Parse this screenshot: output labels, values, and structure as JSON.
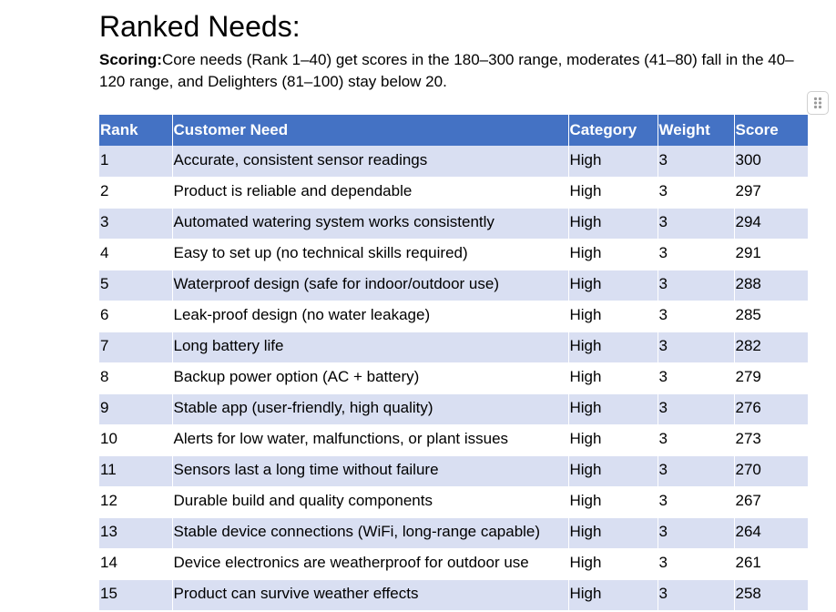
{
  "heading": "Ranked Needs:",
  "scoring": {
    "label": "Scoring:",
    "text": "Core needs (Rank 1–40) get scores in the 180–300 range, moderates (41–80) fall in the 40–120 range, and Delighters (81–100) stay below 20."
  },
  "table": {
    "headers": {
      "rank": "Rank",
      "need": "Customer Need",
      "category": "Category",
      "weight": "Weight",
      "score": "Score"
    },
    "rows": [
      {
        "rank": "1",
        "need": "Accurate, consistent sensor readings",
        "category": "High",
        "weight": "3",
        "score": "300"
      },
      {
        "rank": "2",
        "need": "Product is reliable and dependable",
        "category": "High",
        "weight": "3",
        "score": "297"
      },
      {
        "rank": "3",
        "need": "Automated watering system works consistently",
        "category": "High",
        "weight": "3",
        "score": "294"
      },
      {
        "rank": "4",
        "need": "Easy to set up (no technical skills required)",
        "category": "High",
        "weight": "3",
        "score": "291"
      },
      {
        "rank": "5",
        "need": "Waterproof design (safe for indoor/outdoor use)",
        "category": "High",
        "weight": "3",
        "score": "288"
      },
      {
        "rank": "6",
        "need": "Leak-proof design (no water leakage)",
        "category": "High",
        "weight": "3",
        "score": "285"
      },
      {
        "rank": "7",
        "need": "Long battery life",
        "category": "High",
        "weight": "3",
        "score": "282"
      },
      {
        "rank": "8",
        "need": "Backup power option (AC + battery)",
        "category": "High",
        "weight": "3",
        "score": "279"
      },
      {
        "rank": "9",
        "need": "Stable app (user-friendly, high quality)",
        "category": "High",
        "weight": "3",
        "score": "276"
      },
      {
        "rank": "10",
        "need": "Alerts for low water, malfunctions, or plant issues",
        "category": "High",
        "weight": "3",
        "score": "273"
      },
      {
        "rank": "11",
        "need": "Sensors last a long time without failure",
        "category": "High",
        "weight": "3",
        "score": "270"
      },
      {
        "rank": "12",
        "need": "Durable build and quality components",
        "category": "High",
        "weight": "3",
        "score": "267"
      },
      {
        "rank": "13",
        "need": "Stable device connections (WiFi, long-range capable)",
        "category": "High",
        "weight": "3",
        "score": "264"
      },
      {
        "rank": "14",
        "need": "Device electronics are weatherproof for outdoor use",
        "category": "High",
        "weight": "3",
        "score": "261"
      },
      {
        "rank": "15",
        "need": "Product can survive weather effects",
        "category": "High",
        "weight": "3",
        "score": "258"
      }
    ]
  }
}
